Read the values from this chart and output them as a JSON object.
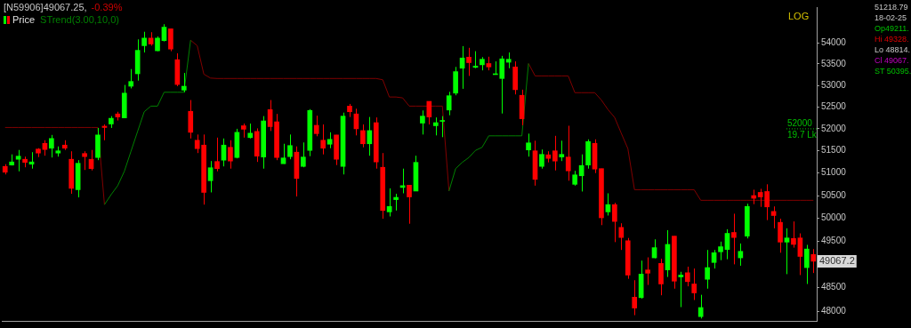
{
  "chart_data": {
    "type": "candlestick",
    "categories": [
      null,
      null,
      null,
      null,
      null,
      null,
      null,
      null,
      null,
      null,
      null,
      null,
      null,
      null,
      null,
      null,
      null,
      null,
      null,
      null,
      null,
      null,
      null,
      null,
      null,
      null,
      null,
      null,
      null,
      null,
      null,
      null,
      null,
      null,
      null,
      null,
      null,
      null,
      null,
      null,
      null,
      null,
      null,
      null,
      null,
      null,
      null,
      null,
      null,
      null,
      null,
      null,
      null,
      null,
      null,
      null,
      null,
      null,
      null,
      null,
      null,
      null,
      null,
      null,
      null,
      null,
      null,
      null,
      null,
      null,
      null,
      null,
      null,
      null,
      null,
      null,
      null,
      null,
      null,
      null,
      null,
      null,
      null,
      null,
      null,
      null,
      null,
      null,
      null,
      null,
      null,
      null,
      null,
      null,
      null,
      null,
      null,
      null,
      null,
      null,
      null,
      null,
      null,
      null,
      null,
      null,
      null,
      null,
      null,
      null,
      null,
      null,
      null,
      null,
      null,
      null,
      null,
      null,
      null,
      null,
      null,
      null,
      null
    ],
    "series": [
      {
        "name": "Price",
        "ohlc": [
          [
            51150,
            51200,
            50970,
            51020
          ],
          [
            51180,
            51420,
            51170,
            51250
          ],
          [
            51310,
            51520,
            51040,
            51380
          ],
          [
            51310,
            51370,
            51130,
            51240
          ],
          [
            51200,
            51470,
            51100,
            51250
          ],
          [
            51540,
            51560,
            51360,
            51450
          ],
          [
            51670,
            51740,
            51390,
            51530
          ],
          [
            51560,
            51860,
            51350,
            51780
          ],
          [
            51450,
            51600,
            51370,
            51500
          ],
          [
            51630,
            51740,
            51520,
            51560
          ],
          [
            51310,
            51490,
            50540,
            50660
          ],
          [
            50630,
            51290,
            50460,
            51220
          ],
          [
            51440,
            51490,
            51070,
            51370
          ],
          [
            51310,
            51520,
            51060,
            51100
          ],
          [
            51350,
            52020,
            51290,
            51860
          ],
          [
            52060,
            52100,
            51740,
            52030
          ],
          [
            52110,
            52290,
            52020,
            52240
          ],
          [
            52340,
            52390,
            52190,
            52270
          ],
          [
            52250,
            53010,
            52250,
            52820
          ],
          [
            52980,
            53380,
            52930,
            53090
          ],
          [
            53270,
            54080,
            53110,
            53820
          ],
          [
            53930,
            54260,
            53770,
            54110
          ],
          [
            54110,
            54250,
            53930,
            53970
          ],
          [
            53810,
            54150,
            53800,
            54110
          ],
          [
            54050,
            54440,
            54030,
            54370
          ],
          [
            54330,
            54330,
            53800,
            53850
          ],
          [
            53600,
            53750,
            52980,
            53020
          ],
          [
            52890,
            53290,
            52840,
            52980
          ],
          [
            52400,
            52660,
            51780,
            51920
          ],
          [
            51740,
            51870,
            51450,
            51550
          ],
          [
            51630,
            51870,
            50300,
            50570
          ],
          [
            50830,
            51270,
            50570,
            51120
          ],
          [
            51260,
            51800,
            51040,
            51100
          ],
          [
            51290,
            51780,
            51150,
            51630
          ],
          [
            51580,
            51740,
            51100,
            51270
          ],
          [
            51350,
            52000,
            51330,
            51920
          ],
          [
            52070,
            52120,
            51800,
            51990
          ],
          [
            51800,
            52120,
            51780,
            51900
          ],
          [
            51940,
            52010,
            51250,
            51380
          ],
          [
            51360,
            52290,
            51100,
            52180
          ],
          [
            52440,
            52660,
            51950,
            52050
          ],
          [
            52160,
            52340,
            51290,
            51350
          ],
          [
            51210,
            51660,
            51210,
            51340
          ],
          [
            51370,
            51870,
            51310,
            51620
          ],
          [
            51470,
            51600,
            50480,
            50880
          ],
          [
            51150,
            51690,
            51130,
            51360
          ],
          [
            51510,
            52450,
            51380,
            52420
          ],
          [
            52080,
            52300,
            51830,
            51890
          ],
          [
            51740,
            52100,
            51420,
            51560
          ],
          [
            51650,
            51920,
            51560,
            51760
          ],
          [
            51860,
            51860,
            51180,
            51310
          ],
          [
            51150,
            52370,
            50970,
            52290
          ],
          [
            52520,
            52570,
            52270,
            52390
          ],
          [
            52340,
            52460,
            51850,
            52000
          ],
          [
            51960,
            52100,
            51580,
            51660
          ],
          [
            51660,
            52270,
            51390,
            51960
          ],
          [
            52140,
            52260,
            51100,
            51250
          ],
          [
            51130,
            51450,
            49990,
            50170
          ],
          [
            50140,
            50660,
            50040,
            50260
          ],
          [
            50410,
            50540,
            50170,
            50460
          ],
          [
            50680,
            51100,
            50550,
            50720
          ],
          [
            50730,
            50730,
            49880,
            50470
          ],
          [
            50600,
            51390,
            50600,
            51240
          ],
          [
            52130,
            52420,
            51870,
            52290
          ],
          [
            52630,
            52630,
            52100,
            52270
          ],
          [
            52070,
            52260,
            51850,
            52140
          ],
          [
            52170,
            52290,
            51810,
            52190
          ],
          [
            52430,
            52850,
            52310,
            52760
          ],
          [
            52820,
            53430,
            52770,
            53320
          ],
          [
            53400,
            53920,
            52920,
            53640
          ],
          [
            53660,
            53880,
            53220,
            53530
          ],
          [
            53420,
            53800,
            53400,
            53450
          ],
          [
            53480,
            53660,
            53350,
            53610
          ],
          [
            53510,
            53670,
            53350,
            53430
          ],
          [
            53250,
            53560,
            53250,
            53270
          ],
          [
            53160,
            53690,
            52350,
            53620
          ],
          [
            53540,
            53770,
            53400,
            53610
          ],
          [
            53430,
            53560,
            52790,
            52900
          ],
          [
            52770,
            52900,
            52080,
            52230
          ],
          [
            51520,
            51890,
            51370,
            51680
          ],
          [
            51500,
            51730,
            50720,
            50860
          ],
          [
            51150,
            51530,
            51100,
            51420
          ],
          [
            51410,
            51490,
            51240,
            51330
          ],
          [
            51500,
            51840,
            51060,
            51270
          ],
          [
            51360,
            51730,
            51270,
            51420
          ],
          [
            51360,
            52070,
            50830,
            51050
          ],
          [
            50750,
            51050,
            50720,
            50960
          ],
          [
            50940,
            51420,
            50590,
            51170
          ],
          [
            51180,
            51760,
            51100,
            51710
          ],
          [
            51670,
            51760,
            51000,
            51090
          ],
          [
            51100,
            51100,
            49850,
            50010
          ],
          [
            50140,
            50550,
            50060,
            50300
          ],
          [
            50300,
            50340,
            49480,
            49930
          ],
          [
            49800,
            49890,
            49310,
            49580
          ],
          [
            49510,
            49570,
            48690,
            48770
          ],
          [
            48300,
            48660,
            47920,
            48070
          ],
          [
            48290,
            49080,
            48270,
            48790
          ],
          [
            48880,
            49150,
            48560,
            48810
          ],
          [
            49140,
            49540,
            49130,
            49360
          ],
          [
            49020,
            49120,
            48340,
            48580
          ],
          [
            48880,
            49740,
            48730,
            49430
          ],
          [
            49610,
            49610,
            48480,
            48640
          ],
          [
            48730,
            48840,
            48090,
            48770
          ],
          [
            48820,
            48950,
            48530,
            48630
          ],
          [
            48580,
            48910,
            48240,
            48390
          ],
          [
            47890,
            48350,
            47850,
            48080
          ],
          [
            48680,
            49310,
            48480,
            48930
          ],
          [
            49040,
            49310,
            48910,
            49250
          ],
          [
            49270,
            49490,
            49090,
            49380
          ],
          [
            49320,
            49760,
            49110,
            49670
          ],
          [
            49690,
            50100,
            49000,
            49580
          ],
          [
            49140,
            49450,
            48970,
            49280
          ],
          [
            49610,
            50320,
            49560,
            50260
          ],
          [
            50500,
            50630,
            50310,
            50440
          ],
          [
            50570,
            50650,
            50250,
            50470
          ],
          [
            50590,
            50750,
            49960,
            50250
          ],
          [
            50150,
            50260,
            49780,
            50060
          ],
          [
            49910,
            49990,
            49250,
            49480
          ],
          [
            49480,
            49780,
            48790,
            49570
          ],
          [
            49560,
            49930,
            49360,
            49430
          ],
          [
            49570,
            49670,
            48770,
            49170
          ],
          [
            48930,
            49420,
            48580,
            49330
          ],
          [
            49211,
            49328,
            48814,
            49067
          ]
        ]
      },
      {
        "name": "STrend(3.00,10,0)",
        "type": "line",
        "color": "#008000",
        "values": [
          null,
          null,
          null,
          null,
          null,
          null,
          null,
          null,
          null,
          null,
          null,
          null,
          null,
          null,
          null,
          50300,
          50520,
          50720,
          51040,
          51490,
          51940,
          52390,
          52520,
          52520,
          52840,
          52840,
          52840,
          52840,
          54060,
          null,
          null,
          null,
          null,
          null,
          null,
          null,
          null,
          null,
          null,
          null,
          null,
          null,
          null,
          null,
          null,
          null,
          null,
          null,
          null,
          null,
          null,
          null,
          null,
          null,
          null,
          null,
          null,
          null,
          null,
          null,
          null,
          null,
          null,
          null,
          null,
          null,
          null,
          50600,
          51100,
          51240,
          51350,
          51510,
          51580,
          51840,
          51840,
          51840,
          51840,
          51840,
          51840,
          53510,
          null,
          null,
          null,
          null,
          null,
          null,
          null,
          null,
          null,
          null,
          null,
          null,
          null,
          null,
          null,
          null,
          null,
          null,
          null,
          null,
          null,
          null,
          null,
          null,
          null,
          null,
          null,
          null,
          null,
          null,
          null,
          null,
          null,
          null,
          null,
          null,
          null,
          null,
          null,
          null,
          null,
          null,
          null
        ]
      },
      {
        "type": "line",
        "color": "#800000",
        "values": [
          52030,
          52030,
          52030,
          52030,
          52030,
          52030,
          52030,
          52030,
          52030,
          52030,
          52030,
          52030,
          52030,
          52030,
          52030,
          50300,
          null,
          null,
          null,
          null,
          null,
          null,
          null,
          null,
          null,
          null,
          null,
          null,
          54060,
          53930,
          53260,
          53170,
          53160,
          53160,
          53160,
          53160,
          53160,
          53160,
          53160,
          53160,
          53160,
          53160,
          53160,
          53160,
          53160,
          53160,
          53160,
          53160,
          53160,
          53160,
          53160,
          53160,
          53160,
          53160,
          53160,
          53160,
          53160,
          53130,
          52730,
          52730,
          52710,
          52520,
          52520,
          52520,
          52520,
          52520,
          52520,
          50600,
          null,
          null,
          null,
          null,
          null,
          null,
          null,
          null,
          null,
          null,
          null,
          53510,
          53220,
          53220,
          53220,
          53220,
          53220,
          53220,
          52830,
          52830,
          52830,
          52830,
          52660,
          52440,
          52260,
          51900,
          51550,
          50630,
          50630,
          50630,
          50630,
          50630,
          50630,
          50630,
          50630,
          50630,
          50630,
          50395,
          50395,
          50395,
          50395,
          50395,
          50395,
          50395,
          50395,
          50395,
          50395,
          50395,
          50395,
          50395,
          50395,
          50395,
          50395,
          50395,
          50395
        ]
      }
    ],
    "log": true,
    "ylim": [
      47800,
      54850
    ],
    "yticks": [
      48000,
      48500,
      {
        "value": 49000,
        "label": null
      },
      49500,
      50000,
      50500,
      51000,
      51500,
      52000,
      52500,
      53000,
      53500,
      54000
    ],
    "tick_labels": "y",
    "grid": false,
    "legend": "top left",
    "ref_lines": [
      {
        "axis": "y",
        "value": 52000,
        "label": "52000",
        "color": "#00c000",
        "line_style": "dotted"
      }
    ],
    "annotations": [
      "[N59906]49067.25,",
      "-0.39%",
      "LOG",
      "51218.79",
      "18-02-25",
      "Op49211.",
      "Hi 49328.",
      "Lo 48814.",
      "Cl 49067.",
      "ST 50395.",
      "19.7 Lk",
      "49067.2"
    ]
  }
}
